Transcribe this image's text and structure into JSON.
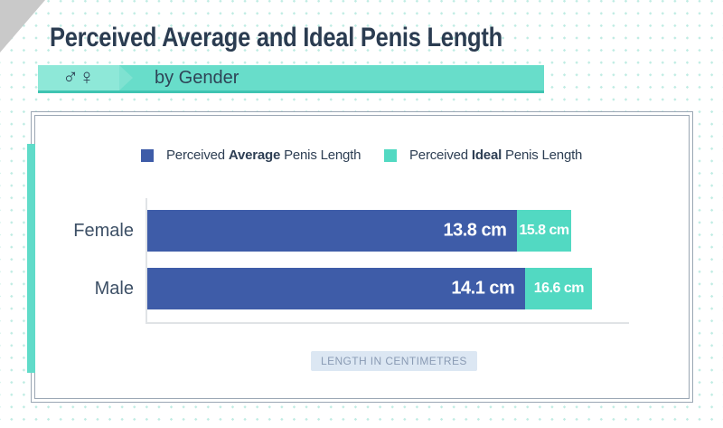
{
  "header": {
    "title": "Perceived Average and Ideal Penis Length",
    "subtitle": "by Gender",
    "gender_symbols": "♂♀"
  },
  "legend": {
    "items": [
      {
        "prefix": "Perceived ",
        "bold": "Average",
        "suffix": " Penis Length",
        "color": "#3e5ca8"
      },
      {
        "prefix": "Perceived ",
        "bold": "Ideal",
        "suffix": " Penis Length",
        "color": "#52d9c2"
      }
    ]
  },
  "chart_data": {
    "type": "bar",
    "orientation": "horizontal",
    "title": "Perceived Average and Ideal Penis Length by Gender",
    "categories": [
      "Female",
      "Male"
    ],
    "series": [
      {
        "name": "Perceived Average Penis Length",
        "color": "#3e5ca8",
        "values": [
          13.8,
          14.1
        ]
      },
      {
        "name": "Perceived Ideal Penis Length",
        "color": "#52d9c2",
        "values": [
          15.8,
          16.6
        ]
      }
    ],
    "rows": [
      {
        "label": "Female",
        "avg": 13.8,
        "ideal": 15.8,
        "avg_label": "13.8 cm",
        "ideal_label": "15.8 cm"
      },
      {
        "label": "Male",
        "avg": 14.1,
        "ideal": 16.6,
        "avg_label": "14.1 cm",
        "ideal_label": "16.6 cm"
      }
    ],
    "unit": "cm",
    "xlabel": "LENGTH IN CENTIMETRES",
    "xlim": [
      0,
      18
    ],
    "grid": false,
    "legend_position": "top"
  },
  "colors": {
    "navy_text": "#2b3c51",
    "bar_blue": "#3e5ca8",
    "bar_teal": "#52d9c2",
    "banner_teal": "#68ddca",
    "banner_light": "#8ee8d8",
    "banner_shadow": "#3fc4b2",
    "left_accent": "#60dbc9",
    "card_border": "#9aa6b3",
    "axis_gray": "#e0e3e6",
    "badge_bg": "#dce7f3",
    "badge_text": "#8a9bb4",
    "corner_gray": "#c9c9c9",
    "background_dots": "#bfece3"
  }
}
